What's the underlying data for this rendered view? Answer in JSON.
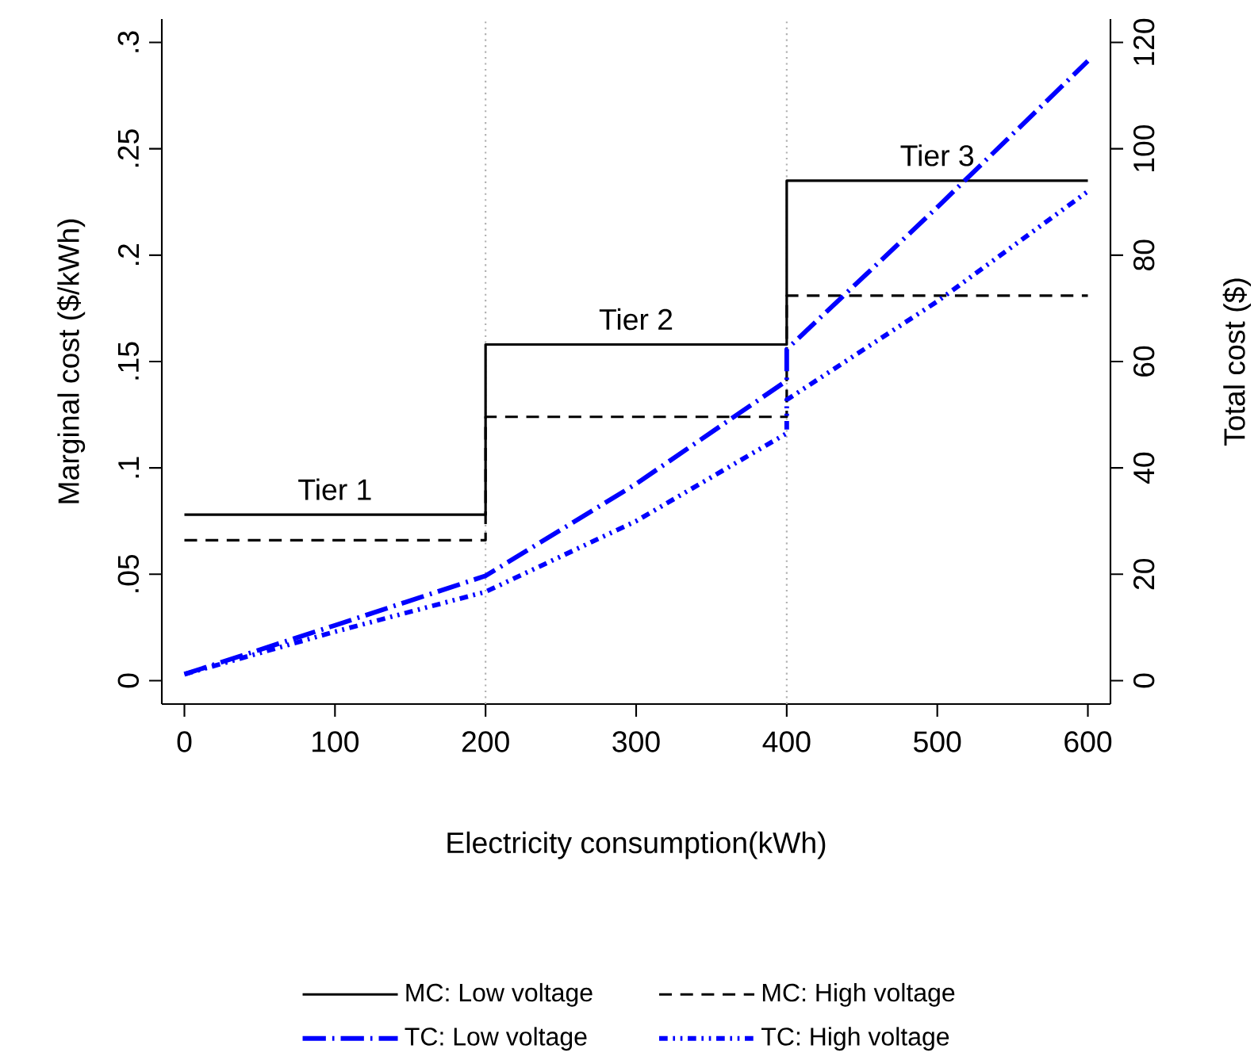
{
  "chart_data": {
    "type": "line",
    "xlabel": "Electricity consumption(kWh)",
    "ylabel": "Marginal cost ($/kWh)",
    "y2label": "Total cost ($)",
    "xlim": [
      -15,
      615
    ],
    "xticks": [
      0,
      100,
      200,
      300,
      400,
      500,
      600
    ],
    "ylim": [
      -0.011,
      0.311
    ],
    "yticks": [
      0,
      {
        "value": 0.05,
        "label": ".05"
      },
      {
        "value": 0.1,
        "label": ".1"
      },
      {
        "value": 0.15,
        "label": ".15"
      },
      {
        "value": 0.2,
        "label": ".2"
      },
      {
        "value": 0.25,
        "label": ".25"
      },
      {
        "value": 0.3,
        "label": ".3"
      }
    ],
    "y2lim": [
      -4.4,
      124.4
    ],
    "y2ticks": [
      0,
      20,
      40,
      60,
      80,
      100,
      120
    ],
    "grid": false,
    "legend": "bottom",
    "ref_lines": [
      {
        "axis": "x",
        "value": 200,
        "color": "#b0b0b0",
        "line_style": "dotted"
      },
      {
        "axis": "x",
        "value": 400,
        "color": "#b0b0b0",
        "line_style": "dotted"
      }
    ],
    "annotations": [
      "Tier 1",
      "Tier 2",
      "Tier 3"
    ],
    "series": [
      {
        "name": "MC: Low voltage",
        "type": "step",
        "color": "#000000",
        "line_style": "solid",
        "x": [
          0,
          200,
          400,
          600
        ],
        "values": [
          0.078,
          0.158,
          0.235,
          0.235
        ]
      },
      {
        "name": "MC: High voltage",
        "type": "step",
        "color": "#000000",
        "line_style": "dashed",
        "x": [
          0,
          200,
          400,
          600
        ],
        "values": [
          0.066,
          0.124,
          0.181,
          0.181
        ]
      },
      {
        "name": "TC: Low voltage",
        "axis": "y2",
        "color": "#0000ff",
        "line_style": "dashdot",
        "x": [
          0,
          100,
          200,
          300,
          400,
          400,
          500,
          600
        ],
        "values": [
          1.2,
          10.4,
          19.7,
          37,
          56.4,
          62.3,
          89,
          116.5
        ]
      },
      {
        "name": "TC: High voltage",
        "axis": "y2",
        "color": "#0000ff",
        "line_style": "dashdotdot",
        "x": [
          0,
          100,
          200,
          300,
          400,
          400,
          500,
          600
        ],
        "values": [
          1.2,
          9.2,
          16.7,
          30,
          46.5,
          52.8,
          71.3,
          92
        ]
      }
    ]
  }
}
